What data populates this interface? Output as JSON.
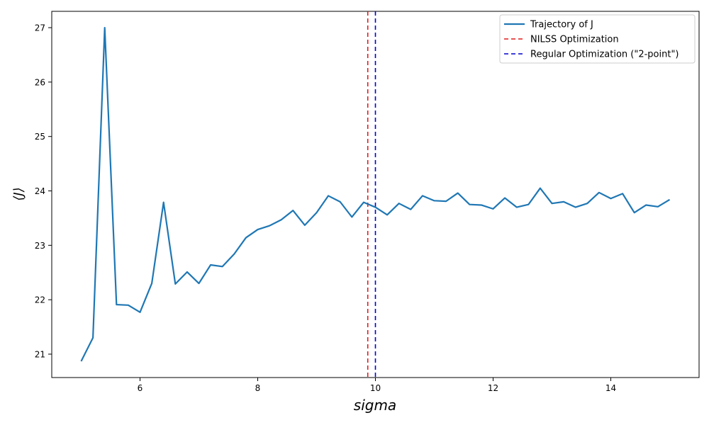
{
  "chart_data": {
    "type": "line",
    "xlabel": "sigma",
    "ylabel": "⟨J⟩",
    "xlim": [
      4.5,
      15.5
    ],
    "ylim": [
      20.57,
      27.3
    ],
    "xticks": [
      6,
      8,
      10,
      12,
      14
    ],
    "yticks": [
      21,
      22,
      23,
      24,
      25,
      26,
      27
    ],
    "grid": false,
    "legend_position": "top-right",
    "series": [
      {
        "name": "Trajectory of J",
        "style": "solid",
        "color": "#1f77b4",
        "x": [
          5.0,
          5.2,
          5.4,
          5.6,
          5.8,
          6.0,
          6.2,
          6.4,
          6.6,
          6.8,
          7.0,
          7.2,
          7.4,
          7.6,
          7.8,
          8.0,
          8.2,
          8.4,
          8.6,
          8.8,
          9.0,
          9.2,
          9.4,
          9.6,
          9.8,
          10.0,
          10.2,
          10.4,
          10.6,
          10.8,
          11.0,
          11.2,
          11.4,
          11.6,
          11.8,
          12.0,
          12.2,
          12.4,
          12.6,
          12.8,
          13.0,
          13.2,
          13.4,
          13.6,
          13.8,
          14.0,
          14.2,
          14.4,
          14.6,
          14.8,
          15.0
        ],
        "y": [
          20.87,
          21.3,
          27.0,
          21.91,
          21.9,
          21.77,
          22.3,
          23.79,
          22.29,
          22.51,
          22.3,
          22.64,
          22.61,
          22.84,
          23.14,
          23.29,
          23.36,
          23.47,
          23.64,
          23.37,
          23.6,
          23.91,
          23.8,
          23.52,
          23.79,
          23.7,
          23.56,
          23.77,
          23.66,
          23.91,
          23.82,
          23.81,
          23.96,
          23.75,
          23.74,
          23.67,
          23.87,
          23.7,
          23.75,
          24.05,
          23.77,
          23.8,
          23.7,
          23.77,
          23.97,
          23.86,
          23.95,
          23.6,
          23.74,
          23.71,
          23.84
        ]
      },
      {
        "name": "NILSS Optimization",
        "style": "dashed",
        "orientation": "vertical",
        "color": "#e41a1c",
        "x": 9.87
      },
      {
        "name": "Regular Optimization (\"2-point\")",
        "style": "dashed",
        "orientation": "vertical",
        "color": "#0000cd",
        "x": 10.0
      }
    ]
  }
}
